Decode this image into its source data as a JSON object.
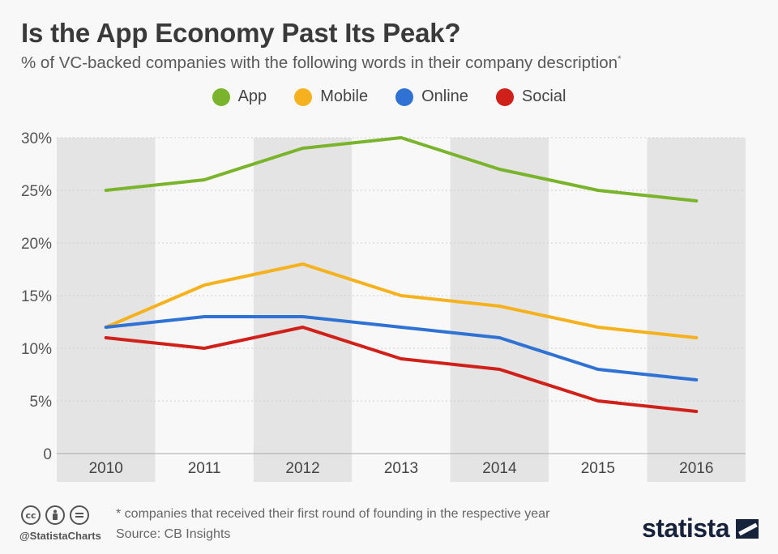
{
  "header": {
    "title": "Is the App Economy Past Its Peak?",
    "subtitle": "% of VC-backed companies with the following words in their company description",
    "subtitle_mark": "*"
  },
  "legend": [
    {
      "label": "App",
      "color": "#7ab42c"
    },
    {
      "label": "Mobile",
      "color": "#f5b21e"
    },
    {
      "label": "Online",
      "color": "#2f72d3"
    },
    {
      "label": "Social",
      "color": "#d0201a"
    }
  ],
  "chart_data": {
    "type": "line",
    "x": [
      "2010",
      "2011",
      "2012",
      "2013",
      "2014",
      "2015",
      "2016"
    ],
    "series": [
      {
        "name": "App",
        "color": "#7ab42c",
        "values": [
          25,
          26,
          29,
          30,
          27,
          25,
          24
        ]
      },
      {
        "name": "Mobile",
        "color": "#f5b21e",
        "values": [
          12,
          16,
          18,
          15,
          14,
          12,
          11
        ]
      },
      {
        "name": "Online",
        "color": "#2f72d3",
        "values": [
          12,
          13,
          13,
          12,
          11,
          8,
          7
        ]
      },
      {
        "name": "Social",
        "color": "#d0201a",
        "values": [
          11,
          10,
          12,
          9,
          8,
          5,
          4
        ]
      }
    ],
    "ylim": [
      0,
      30
    ],
    "yticks": [
      0,
      5,
      10,
      15,
      20,
      25,
      30
    ],
    "ytick_labels": [
      "0",
      "5%",
      "10%",
      "15%",
      "20%",
      "25%",
      "30%"
    ],
    "grid": true,
    "legend_position": "top-center"
  },
  "footer": {
    "handle": "@StatistaCharts",
    "footnote": "* companies that received their first round of founding in the respective year",
    "source": "Source: CB Insights",
    "brand": "statista",
    "license_icons": [
      "cc-icon",
      "attribution-icon",
      "no-derivatives-icon"
    ]
  }
}
